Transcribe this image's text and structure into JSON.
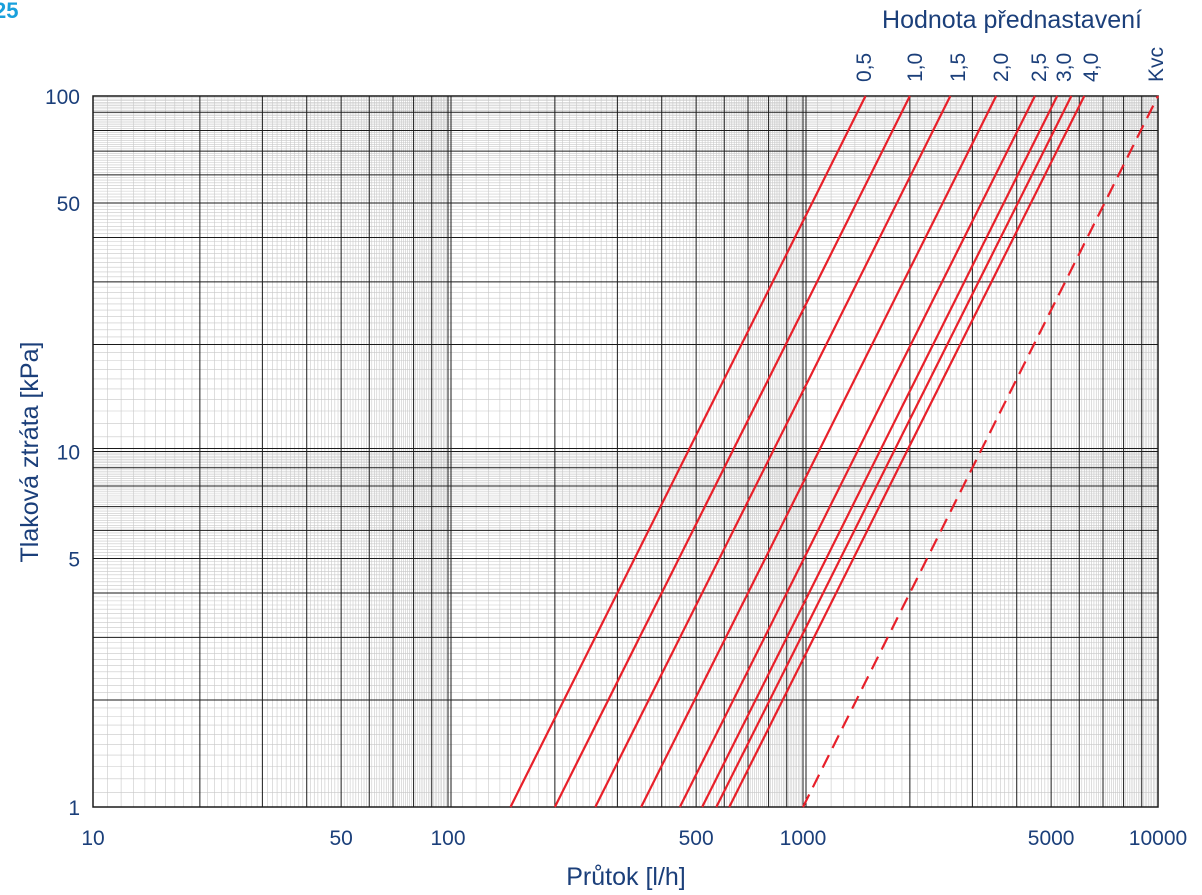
{
  "corner_label": "25",
  "chart_data": {
    "type": "line",
    "title": "",
    "xlabel": "Průtok  [l/h]",
    "ylabel": "Tlaková ztráta  [kPa]",
    "x_scale": "log",
    "y_scale": "log",
    "xlim": [
      10,
      10000
    ],
    "ylim": [
      1,
      100
    ],
    "grid": true,
    "x_ticks": [
      {
        "value": 10,
        "label": "10"
      },
      {
        "value": 50,
        "label": "50"
      },
      {
        "value": 100,
        "label": "100"
      },
      {
        "value": 500,
        "label": "500"
      },
      {
        "value": 1000,
        "label": "1000"
      },
      {
        "value": 5000,
        "label": "5000"
      },
      {
        "value": 10000,
        "label": "10000"
      }
    ],
    "y_ticks": [
      {
        "value": 1,
        "label": "1"
      },
      {
        "value": 5,
        "label": "5"
      },
      {
        "value": 10,
        "label": "10"
      },
      {
        "value": 50,
        "label": "50"
      },
      {
        "value": 100,
        "label": "100"
      }
    ],
    "top_axis_title": "Hodnota přednastavení",
    "line_color": "#e8202a",
    "series": [
      {
        "name": "0,5",
        "x": [
          150,
          1500
        ],
        "y": [
          1,
          100
        ],
        "style": "solid"
      },
      {
        "name": "1,0",
        "x": [
          200,
          2000
        ],
        "y": [
          1,
          100
        ],
        "style": "solid"
      },
      {
        "name": "1,5",
        "x": [
          260,
          2600
        ],
        "y": [
          1,
          100
        ],
        "style": "solid"
      },
      {
        "name": "2,0",
        "x": [
          350,
          3500
        ],
        "y": [
          1,
          100
        ],
        "style": "solid"
      },
      {
        "name": "2,5",
        "x": [
          450,
          4500
        ],
        "y": [
          1,
          100
        ],
        "style": "solid"
      },
      {
        "name": "3,0",
        "x": [
          520,
          5200
        ],
        "y": [
          1,
          100
        ],
        "style": "solid"
      },
      {
        "name": "",
        "x": [
          570,
          5700
        ],
        "y": [
          1,
          100
        ],
        "style": "solid"
      },
      {
        "name": "4,0",
        "x": [
          620,
          6200
        ],
        "y": [
          1,
          100
        ],
        "style": "solid"
      },
      {
        "name": "Kvc",
        "x": [
          1000,
          10000
        ],
        "y": [
          1,
          100
        ],
        "style": "dashed"
      }
    ]
  }
}
